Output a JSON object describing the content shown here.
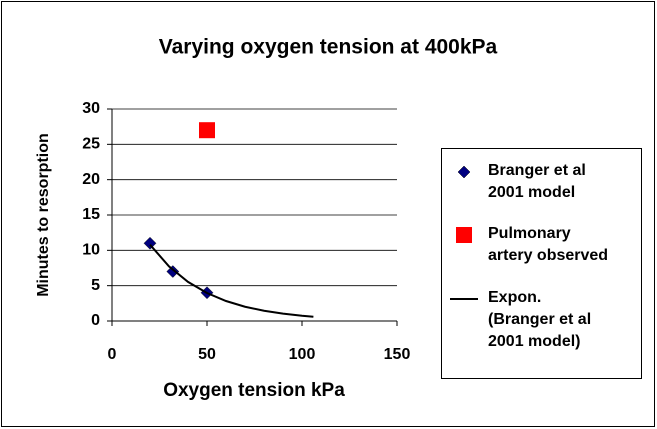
{
  "chart_data": {
    "type": "scatter",
    "title": "Varying oxygen tension at 400kPa",
    "x_label": "Oxygen tension kPa",
    "y_label": "Minutes to resorption",
    "xlim": [
      0,
      150
    ],
    "xticks": [
      0,
      50,
      100,
      150
    ],
    "ylim": [
      0,
      30
    ],
    "yticks": [
      0,
      5,
      10,
      15,
      20,
      25,
      30
    ],
    "grid": true,
    "legend": "right",
    "series": [
      {
        "name": "Branger et al\n2001 model",
        "color": "#000080",
        "marker": "diamond",
        "x": [
          20,
          32,
          50
        ],
        "values": [
          11,
          7,
          4
        ]
      },
      {
        "name": "Pulmonary\nartery observed",
        "color": "#ff0000",
        "marker": "square",
        "x": [
          50
        ],
        "values": [
          27
        ]
      },
      {
        "name": "Expon.\n(Branger et al\n2001 model)",
        "color": "#000000",
        "marker": "line",
        "x": [
          20,
          30,
          40,
          50,
          60,
          70,
          80,
          90,
          100,
          106
        ],
        "values": [
          10.8,
          7.73,
          5.53,
          3.96,
          2.83,
          2.02,
          1.45,
          1.04,
          0.74,
          0.6
        ]
      }
    ]
  }
}
